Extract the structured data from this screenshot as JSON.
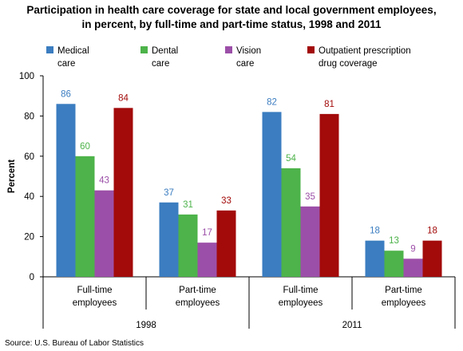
{
  "chart_data": {
    "type": "bar",
    "title_lines": [
      "Participation in health care coverage for state and local government employees,",
      "in percent, by full-time and part-time status, 1998 and 2011"
    ],
    "ylabel": "Percent",
    "ylim": [
      0,
      100
    ],
    "yticks": [
      "0",
      "20",
      "40",
      "60",
      "80",
      "100"
    ],
    "categories": [
      {
        "lines": [
          "Full-time",
          "employees"
        ],
        "group": "1998"
      },
      {
        "lines": [
          "Part-time",
          "employees"
        ],
        "group": "1998"
      },
      {
        "lines": [
          "Full-time",
          "employees"
        ],
        "group": "2011"
      },
      {
        "lines": [
          "Part-time",
          "employees"
        ],
        "group": "2011"
      }
    ],
    "groups": [
      "1998",
      "2011"
    ],
    "series": [
      {
        "legend_lines": [
          "Medical",
          "care"
        ],
        "color": "#3B7DC0",
        "values": [
          86,
          37,
          82,
          18
        ]
      },
      {
        "legend_lines": [
          "Dental",
          "care"
        ],
        "color": "#4DB34A",
        "values": [
          60,
          31,
          54,
          13
        ]
      },
      {
        "legend_lines": [
          "Vision",
          "care"
        ],
        "color": "#9C4FA8",
        "values": [
          43,
          17,
          35,
          9
        ]
      },
      {
        "legend_lines": [
          "Outpatient prescription",
          "drug coverage"
        ],
        "color": "#A30A0A",
        "values": [
          84,
          33,
          81,
          18
        ]
      }
    ],
    "grid": false,
    "legend_position": "top",
    "source": "Source: U.S. Bureau of Labor Statistics"
  }
}
